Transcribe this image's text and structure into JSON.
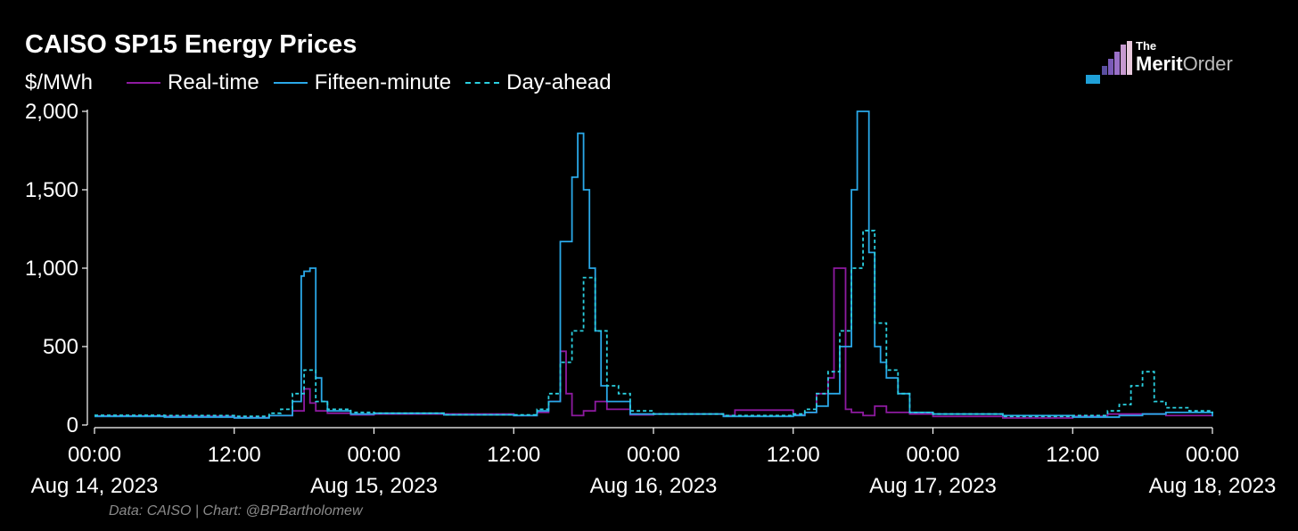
{
  "header": {
    "title": "CAISO SP15 Energy Prices",
    "unit_label": "$/MWh"
  },
  "logo": {
    "small": "The",
    "brand_bold": "Merit",
    "brand_light": "Order"
  },
  "footer": {
    "source": "Data: CAISO | Chart: @BPBartholomew"
  },
  "chart_data": {
    "type": "line",
    "title": "CAISO SP15 Energy Prices",
    "ylabel": "$/MWh",
    "ylim": [
      0,
      2000
    ],
    "yticks": [
      0,
      500,
      1000,
      1500,
      2000
    ],
    "ytick_labels": [
      "0",
      "500",
      "1,000",
      "1,500",
      "2,000"
    ],
    "xlim": [
      "2023-08-14 00:00",
      "2023-08-18 00:00"
    ],
    "xtick_labels": [
      [
        "00:00",
        "Aug 14, 2023"
      ],
      [
        "12:00",
        ""
      ],
      [
        "00:00",
        "Aug 15, 2023"
      ],
      [
        "12:00",
        ""
      ],
      [
        "00:00",
        "Aug 16, 2023"
      ],
      [
        "12:00",
        ""
      ],
      [
        "00:00",
        "Aug 17, 2023"
      ],
      [
        "12:00",
        ""
      ],
      [
        "00:00",
        "Aug 18, 2023"
      ]
    ],
    "grid": false,
    "legend_position": "top-left",
    "series": [
      {
        "name": "Real-time",
        "color": "#8e1aa0",
        "style": "solid",
        "x": [
          "2023-08-14 00:00",
          "2023-08-14 06:00",
          "2023-08-14 12:00",
          "2023-08-14 15:00",
          "2023-08-14 17:00",
          "2023-08-14 18:00",
          "2023-08-14 18:30",
          "2023-08-14 19:00",
          "2023-08-14 20:00",
          "2023-08-14 22:00",
          "2023-08-15 00:00",
          "2023-08-15 06:00",
          "2023-08-15 12:00",
          "2023-08-15 14:00",
          "2023-08-15 15:00",
          "2023-08-15 16:00",
          "2023-08-15 16:30",
          "2023-08-15 17:00",
          "2023-08-15 18:00",
          "2023-08-15 19:00",
          "2023-08-15 20:00",
          "2023-08-15 22:00",
          "2023-08-16 00:00",
          "2023-08-16 06:00",
          "2023-08-16 07:00",
          "2023-08-16 12:00",
          "2023-08-16 13:00",
          "2023-08-16 14:00",
          "2023-08-16 15:00",
          "2023-08-16 15:30",
          "2023-08-16 16:00",
          "2023-08-16 16:30",
          "2023-08-16 17:00",
          "2023-08-16 18:00",
          "2023-08-16 19:00",
          "2023-08-16 20:00",
          "2023-08-16 22:00",
          "2023-08-17 00:00",
          "2023-08-17 06:00",
          "2023-08-17 12:00",
          "2023-08-17 15:00",
          "2023-08-17 18:00",
          "2023-08-17 20:00",
          "2023-08-18 00:00"
        ],
        "y": [
          58,
          55,
          48,
          60,
          90,
          230,
          140,
          90,
          75,
          65,
          70,
          70,
          60,
          80,
          150,
          470,
          200,
          60,
          90,
          150,
          100,
          65,
          70,
          60,
          95,
          65,
          80,
          200,
          300,
          1000,
          1000,
          100,
          80,
          60,
          120,
          80,
          70,
          55,
          45,
          55,
          70,
          70,
          60,
          55
        ]
      },
      {
        "name": "Fifteen-minute",
        "color": "#2aa8e8",
        "style": "solid",
        "x": [
          "2023-08-14 00:00",
          "2023-08-14 06:00",
          "2023-08-14 12:00",
          "2023-08-14 15:00",
          "2023-08-14 17:00",
          "2023-08-14 17:45",
          "2023-08-14 18:00",
          "2023-08-14 18:30",
          "2023-08-14 19:00",
          "2023-08-14 19:30",
          "2023-08-14 20:00",
          "2023-08-14 22:00",
          "2023-08-15 00:00",
          "2023-08-15 06:00",
          "2023-08-15 12:00",
          "2023-08-15 14:00",
          "2023-08-15 15:00",
          "2023-08-15 16:00",
          "2023-08-15 17:00",
          "2023-08-15 17:30",
          "2023-08-15 18:00",
          "2023-08-15 18:30",
          "2023-08-15 19:00",
          "2023-08-15 19:30",
          "2023-08-15 20:00",
          "2023-08-15 22:00",
          "2023-08-16 00:00",
          "2023-08-16 06:00",
          "2023-08-16 12:00",
          "2023-08-16 13:00",
          "2023-08-16 14:00",
          "2023-08-16 15:00",
          "2023-08-16 16:00",
          "2023-08-16 17:00",
          "2023-08-16 17:30",
          "2023-08-16 18:00",
          "2023-08-16 18:30",
          "2023-08-16 19:00",
          "2023-08-16 19:30",
          "2023-08-16 20:00",
          "2023-08-16 21:00",
          "2023-08-16 22:00",
          "2023-08-17 00:00",
          "2023-08-17 06:00",
          "2023-08-17 12:00",
          "2023-08-17 16:00",
          "2023-08-17 18:00",
          "2023-08-17 20:00",
          "2023-08-18 00:00"
        ],
        "y": [
          55,
          50,
          45,
          60,
          150,
          950,
          980,
          1000,
          300,
          150,
          90,
          70,
          75,
          65,
          60,
          90,
          150,
          1170,
          1580,
          1860,
          1500,
          1000,
          600,
          250,
          150,
          70,
          70,
          55,
          60,
          80,
          120,
          200,
          500,
          1500,
          2000,
          2000,
          1100,
          500,
          400,
          300,
          200,
          80,
          70,
          60,
          50,
          60,
          70,
          80,
          55
        ]
      },
      {
        "name": "Day-ahead",
        "color": "#2ad0e0",
        "style": "dashed",
        "x": [
          "2023-08-14 00:00",
          "2023-08-14 06:00",
          "2023-08-14 12:00",
          "2023-08-14 15:00",
          "2023-08-14 16:00",
          "2023-08-14 17:00",
          "2023-08-14 18:00",
          "2023-08-14 19:00",
          "2023-08-14 20:00",
          "2023-08-14 22:00",
          "2023-08-15 00:00",
          "2023-08-15 06:00",
          "2023-08-15 12:00",
          "2023-08-15 14:00",
          "2023-08-15 15:00",
          "2023-08-15 16:00",
          "2023-08-15 17:00",
          "2023-08-15 18:00",
          "2023-08-15 19:00",
          "2023-08-15 20:00",
          "2023-08-15 21:00",
          "2023-08-15 22:00",
          "2023-08-16 00:00",
          "2023-08-16 06:00",
          "2023-08-16 12:00",
          "2023-08-16 13:00",
          "2023-08-16 14:00",
          "2023-08-16 15:00",
          "2023-08-16 16:00",
          "2023-08-16 17:00",
          "2023-08-16 18:00",
          "2023-08-16 19:00",
          "2023-08-16 20:00",
          "2023-08-16 21:00",
          "2023-08-16 22:00",
          "2023-08-17 00:00",
          "2023-08-17 06:00",
          "2023-08-17 12:00",
          "2023-08-17 15:00",
          "2023-08-17 16:00",
          "2023-08-17 17:00",
          "2023-08-17 18:00",
          "2023-08-17 19:00",
          "2023-08-17 20:00",
          "2023-08-17 22:00",
          "2023-08-18 00:00"
        ],
        "y": [
          62,
          60,
          55,
          75,
          100,
          200,
          350,
          150,
          100,
          80,
          75,
          65,
          65,
          100,
          200,
          400,
          600,
          940,
          600,
          250,
          200,
          90,
          70,
          60,
          70,
          100,
          200,
          340,
          600,
          1000,
          1240,
          650,
          350,
          200,
          80,
          70,
          55,
          60,
          90,
          130,
          250,
          340,
          150,
          110,
          90,
          75
        ]
      }
    ]
  }
}
